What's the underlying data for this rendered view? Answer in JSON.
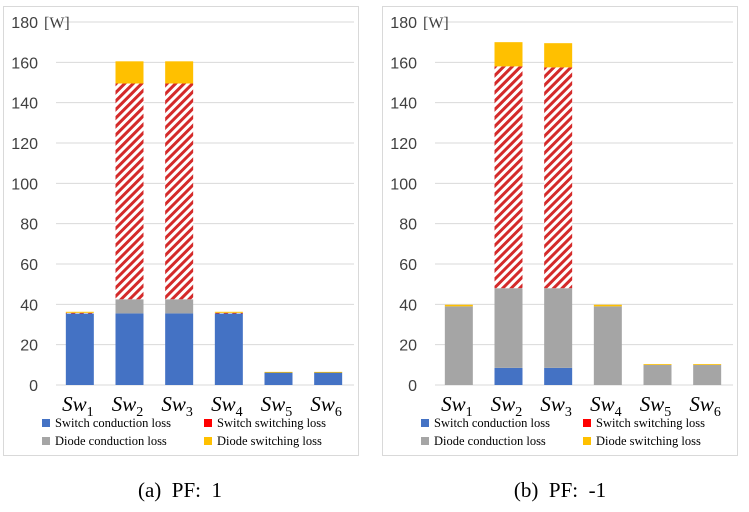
{
  "chart_data": [
    {
      "type": "bar",
      "stacked": true,
      "unit_label": "[W]",
      "categories": [
        "Sw1",
        "Sw2",
        "Sw3",
        "Sw4",
        "Sw5",
        "Sw6"
      ],
      "category_parts": [
        [
          "Sw",
          "1"
        ],
        [
          "Sw",
          "2"
        ],
        [
          "Sw",
          "3"
        ],
        [
          "Sw",
          "4"
        ],
        [
          "Sw",
          "5"
        ],
        [
          "Sw",
          "6"
        ]
      ],
      "ylim": [
        0,
        180
      ],
      "yticks": [
        0,
        20,
        40,
        60,
        80,
        100,
        120,
        140,
        160,
        180
      ],
      "grid": true,
      "legend_position": "bottom",
      "series": [
        {
          "name": "Switch conduction loss",
          "color": "#4472c4",
          "pattern": "solid",
          "values": [
            35.5,
            35.5,
            35.5,
            35.5,
            6.2,
            6.2
          ]
        },
        {
          "name": "Diode conduction loss",
          "color": "#a5a5a5",
          "pattern": "solid",
          "values": [
            0,
            7,
            7,
            0,
            0,
            0
          ]
        },
        {
          "name": "Switch switching loss",
          "color": "#e03030",
          "pattern": "hatch",
          "values": [
            0.3,
            107,
            107,
            0.3,
            0,
            0
          ]
        },
        {
          "name": "Diode switching loss",
          "color": "#ffc000",
          "pattern": "solid",
          "values": [
            0.5,
            11,
            11,
            0.5,
            0.3,
            0.3
          ]
        }
      ],
      "legend": [
        {
          "name": "Switch conduction loss",
          "color": "#4472c4"
        },
        {
          "name": "Switch switching loss",
          "color": "#ff0000"
        },
        {
          "name": "Diode conduction loss",
          "color": "#a5a5a5"
        },
        {
          "name": "Diode switching loss",
          "color": "#ffc000"
        }
      ]
    },
    {
      "type": "bar",
      "stacked": true,
      "unit_label": "[W]",
      "categories": [
        "Sw1",
        "Sw2",
        "Sw3",
        "Sw4",
        "Sw5",
        "Sw6"
      ],
      "category_parts": [
        [
          "Sw",
          "1"
        ],
        [
          "Sw",
          "2"
        ],
        [
          "Sw",
          "3"
        ],
        [
          "Sw",
          "4"
        ],
        [
          "Sw",
          "5"
        ],
        [
          "Sw",
          "6"
        ]
      ],
      "ylim": [
        0,
        180
      ],
      "yticks": [
        0,
        20,
        40,
        60,
        80,
        100,
        120,
        140,
        160,
        180
      ],
      "grid": true,
      "legend_position": "bottom",
      "series": [
        {
          "name": "Switch conduction loss",
          "color": "#4472c4",
          "pattern": "solid",
          "values": [
            0,
            8.5,
            8.5,
            0,
            0,
            0
          ]
        },
        {
          "name": "Diode conduction loss",
          "color": "#a5a5a5",
          "pattern": "solid",
          "values": [
            39,
            39.5,
            39.5,
            39,
            10,
            10
          ]
        },
        {
          "name": "Switch switching loss",
          "color": "#e03030",
          "pattern": "hatch",
          "values": [
            0,
            110,
            109.5,
            0,
            0,
            0
          ]
        },
        {
          "name": "Diode switching loss",
          "color": "#ffc000",
          "pattern": "solid",
          "values": [
            0.8,
            12,
            12,
            0.8,
            0.4,
            0.4
          ]
        }
      ],
      "legend": [
        {
          "name": "Switch conduction loss",
          "color": "#4472c4"
        },
        {
          "name": "Switch switching loss",
          "color": "#ff0000"
        },
        {
          "name": "Diode conduction loss",
          "color": "#a5a5a5"
        },
        {
          "name": "Diode switching loss",
          "color": "#ffc000"
        }
      ]
    }
  ],
  "captions": [
    {
      "label": "(a)",
      "text": "PF:  1"
    },
    {
      "label": "(b)",
      "text": "PF:  -1"
    }
  ]
}
